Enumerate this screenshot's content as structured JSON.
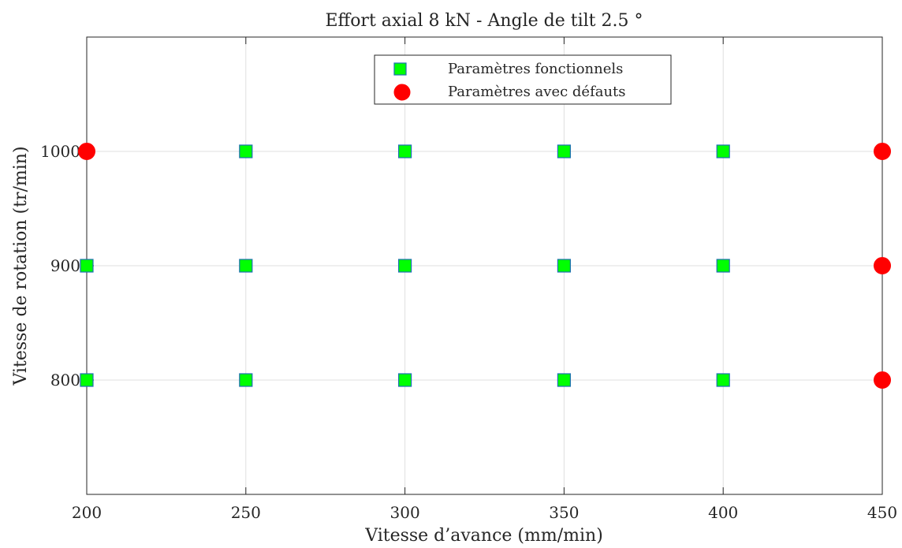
{
  "chart_data": {
    "type": "scatter",
    "title": "Effort axial 8 kN - Angle de tilt 2.5 °",
    "xlabel": "Vitesse d’avance (mm/min)",
    "ylabel": "Vitesse de rotation (tr/min)",
    "xlim": [
      200,
      450
    ],
    "ylim": [
      700,
      1100
    ],
    "xticks": [
      200,
      250,
      300,
      350,
      400,
      450
    ],
    "yticks": [
      800,
      900,
      1000
    ],
    "grid": true,
    "legend_position": "top-center",
    "series": [
      {
        "name": "Paramètres fonctionnels",
        "marker": "square",
        "color": "#00ff00",
        "edge_color": "#1f6fb4",
        "points": [
          {
            "x": 200,
            "y": 900
          },
          {
            "x": 200,
            "y": 800
          },
          {
            "x": 250,
            "y": 1000
          },
          {
            "x": 250,
            "y": 900
          },
          {
            "x": 250,
            "y": 800
          },
          {
            "x": 300,
            "y": 1000
          },
          {
            "x": 300,
            "y": 900
          },
          {
            "x": 300,
            "y": 800
          },
          {
            "x": 350,
            "y": 1000
          },
          {
            "x": 350,
            "y": 900
          },
          {
            "x": 350,
            "y": 800
          },
          {
            "x": 400,
            "y": 1000
          },
          {
            "x": 400,
            "y": 900
          },
          {
            "x": 400,
            "y": 800
          }
        ]
      },
      {
        "name": "Paramètres avec défauts",
        "marker": "circle",
        "color": "#ff0000",
        "edge_color": "#ff0000",
        "points": [
          {
            "x": 200,
            "y": 1000
          },
          {
            "x": 450,
            "y": 1000
          },
          {
            "x": 450,
            "y": 900
          },
          {
            "x": 450,
            "y": 800
          }
        ]
      }
    ]
  }
}
